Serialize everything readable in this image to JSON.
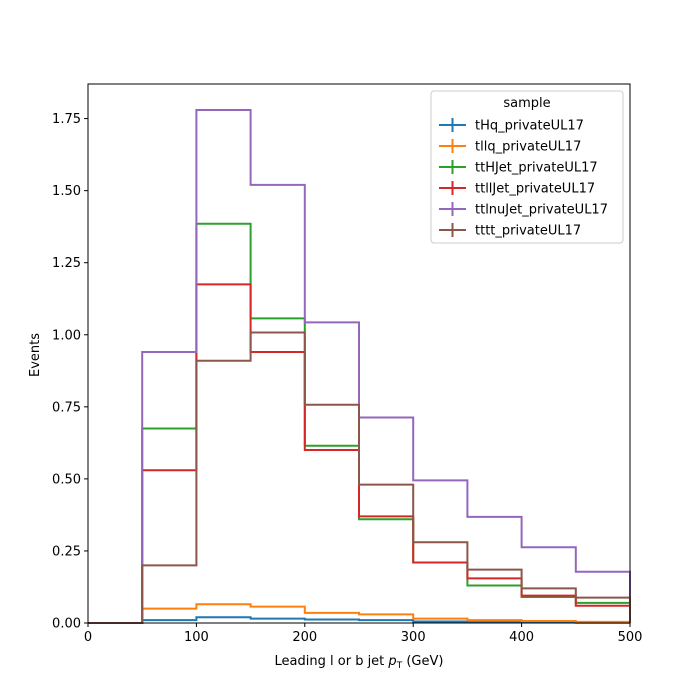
{
  "chart_data": {
    "type": "step-histogram",
    "xlabel_main": "Leading l or b jet ",
    "xlabel_p": "p",
    "xlabel_sub": "T",
    "xlabel_unit": " (GeV)",
    "ylabel": "Events",
    "xlim": [
      0,
      500
    ],
    "ylim": [
      0,
      1.87
    ],
    "bin_edges": [
      0,
      50,
      100,
      150,
      200,
      250,
      300,
      350,
      400,
      450,
      500
    ],
    "x_ticks": [
      "0",
      "100",
      "200",
      "300",
      "400",
      "500"
    ],
    "x_tick_values": [
      0,
      100,
      200,
      300,
      400,
      500
    ],
    "y_ticks": [
      "0.00",
      "0.25",
      "0.50",
      "0.75",
      "1.00",
      "1.25",
      "1.50",
      "1.75"
    ],
    "y_tick_values": [
      0,
      0.25,
      0.5,
      0.75,
      1.0,
      1.25,
      1.5,
      1.75
    ],
    "legend_title": "sample",
    "legend_position": "top-right",
    "series": [
      {
        "name": "tHq_privateUL17",
        "color": "#1f77b4",
        "values": [
          0.0,
          0.01,
          0.02,
          0.015,
          0.012,
          0.01,
          0.005,
          0.003,
          0.002,
          0.001
        ]
      },
      {
        "name": "tllq_privateUL17",
        "color": "#ff7f0e",
        "values": [
          0.0,
          0.05,
          0.065,
          0.057,
          0.035,
          0.03,
          0.015,
          0.01,
          0.007,
          0.004
        ]
      },
      {
        "name": "ttHJet_privateUL17",
        "color": "#2ca02c",
        "values": [
          0.0,
          0.675,
          1.385,
          1.057,
          0.615,
          0.36,
          0.21,
          0.13,
          0.09,
          0.07
        ]
      },
      {
        "name": "ttllJet_privateUL17",
        "color": "#d62728",
        "values": [
          0.0,
          0.53,
          1.175,
          0.94,
          0.6,
          0.37,
          0.21,
          0.155,
          0.095,
          0.06
        ]
      },
      {
        "name": "ttlnuJet_privateUL17",
        "color": "#9467bd",
        "values": [
          0.0,
          0.94,
          1.78,
          1.52,
          1.043,
          0.713,
          0.495,
          0.368,
          0.263,
          0.178
        ]
      },
      {
        "name": "tttt_privateUL17",
        "color": "#8c564b",
        "values": [
          0.0,
          0.2,
          0.91,
          1.008,
          0.757,
          0.48,
          0.28,
          0.185,
          0.12,
          0.088
        ]
      }
    ]
  }
}
